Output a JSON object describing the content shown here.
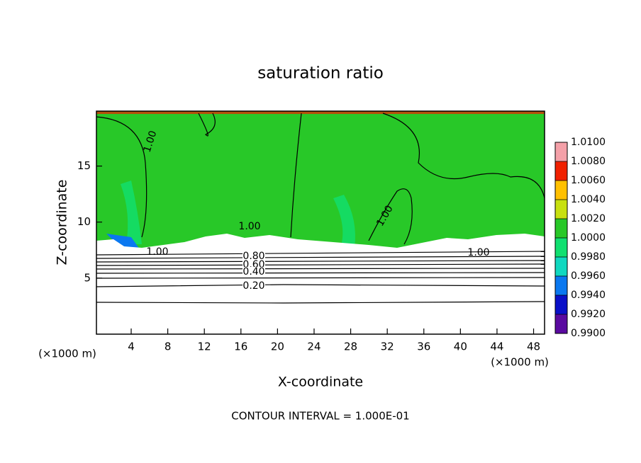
{
  "chart_data": {
    "type": "contour",
    "title": "saturation ratio",
    "x_label": "X-coordinate",
    "y_label": "Z-coordinate",
    "x_unit_left": "(×1000 m)",
    "x_unit_right": "(×1000 m)",
    "footer": "CONTOUR INTERVAL = 1.000E-01",
    "xlim": [
      0.2,
      49.2
    ],
    "xticks": [
      4,
      8,
      12,
      16,
      20,
      24,
      28,
      32,
      36,
      40,
      44,
      48
    ],
    "ylim": [
      0,
      19.9
    ],
    "yticks": [
      5,
      10,
      15
    ],
    "contour_labels": [
      "1.00",
      "1.00",
      "1.00",
      "1.00",
      "1.00",
      "0.80",
      "0.60",
      "0.40",
      "0.20"
    ],
    "colorbar": {
      "lim": [
        0.99,
        1.01
      ],
      "ticks": [
        {
          "value": 0.99,
          "label": "0.9900"
        },
        {
          "value": 0.992,
          "label": "0.9920"
        },
        {
          "value": 0.994,
          "label": "0.9940"
        },
        {
          "value": 0.996,
          "label": "0.9960"
        },
        {
          "value": 0.998,
          "label": "0.9980"
        },
        {
          "value": 1.0,
          "label": "1.0000"
        },
        {
          "value": 1.002,
          "label": "1.0020"
        },
        {
          "value": 1.004,
          "label": "1.0040"
        },
        {
          "value": 1.006,
          "label": "1.0060"
        },
        {
          "value": 1.008,
          "label": "1.0080"
        },
        {
          "value": 1.01,
          "label": "1.0100"
        }
      ],
      "colors": [
        "#5a0aa0",
        "#0a10c8",
        "#0a78f0",
        "#10d8c0",
        "#10e070",
        "#28c828",
        "#c8e010",
        "#ffc000",
        "#f02000",
        "#f4a0a8"
      ]
    }
  }
}
